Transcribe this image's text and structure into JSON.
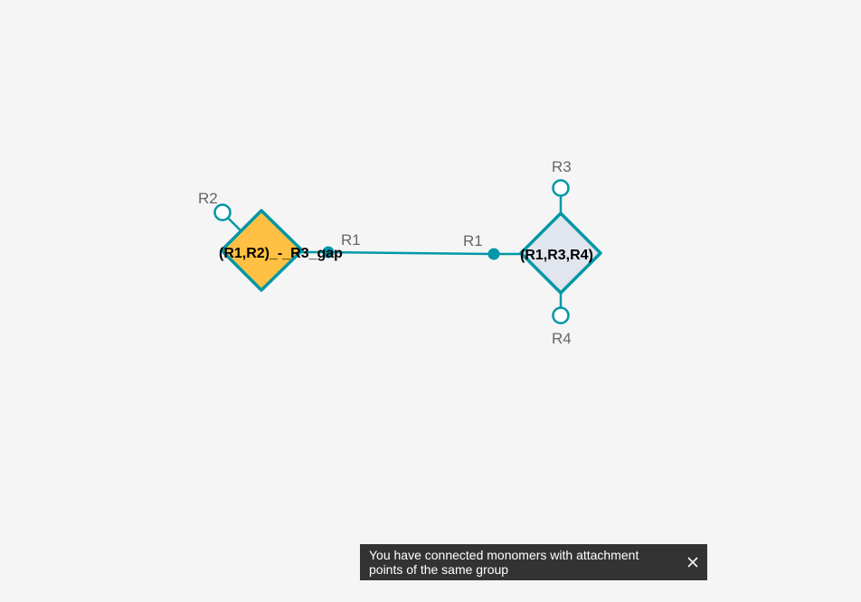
{
  "canvas": {
    "background": "#f5f5f5",
    "bond_color": "#0097a7"
  },
  "monomers": [
    {
      "label": "(R1,R2)_-_R3_gap",
      "fill": "#ffc043",
      "attachment_points": [
        {
          "label": "R2",
          "state": "free"
        },
        {
          "label": "R1",
          "state": "connected"
        }
      ]
    },
    {
      "label": "(R1,R3,R4)",
      "fill": "#e1e5ed",
      "attachment_points": [
        {
          "label": "R3",
          "state": "free"
        },
        {
          "label": "R1",
          "state": "connected"
        },
        {
          "label": "R4",
          "state": "free"
        }
      ]
    }
  ],
  "toast": {
    "message": "You have connected monomers with attachment points of the same group",
    "close_icon": "close-icon"
  }
}
